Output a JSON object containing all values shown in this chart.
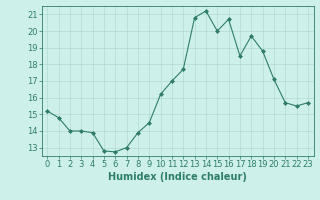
{
  "x": [
    0,
    1,
    2,
    3,
    4,
    5,
    6,
    7,
    8,
    9,
    10,
    11,
    12,
    13,
    14,
    15,
    16,
    17,
    18,
    19,
    20,
    21,
    22,
    23
  ],
  "y": [
    15.2,
    14.8,
    14.0,
    14.0,
    13.9,
    12.8,
    12.75,
    13.0,
    13.9,
    14.5,
    16.2,
    17.0,
    17.7,
    20.8,
    21.2,
    20.0,
    20.7,
    18.5,
    19.7,
    18.8,
    17.1,
    15.7,
    15.5,
    15.7
  ],
  "line_color": "#2e7d6b",
  "marker": "D",
  "marker_size": 2,
  "bg_color": "#cef0ea",
  "grid_color": "#b8ddd8",
  "xlabel": "Humidex (Indice chaleur)",
  "xlabel_fontsize": 7,
  "ylabel_ticks": [
    13,
    14,
    15,
    16,
    17,
    18,
    19,
    20,
    21
  ],
  "xlim": [
    -0.5,
    23.5
  ],
  "ylim": [
    12.5,
    21.5
  ],
  "xticks": [
    0,
    1,
    2,
    3,
    4,
    5,
    6,
    7,
    8,
    9,
    10,
    11,
    12,
    13,
    14,
    15,
    16,
    17,
    18,
    19,
    20,
    21,
    22,
    23
  ],
  "tick_fontsize": 6
}
